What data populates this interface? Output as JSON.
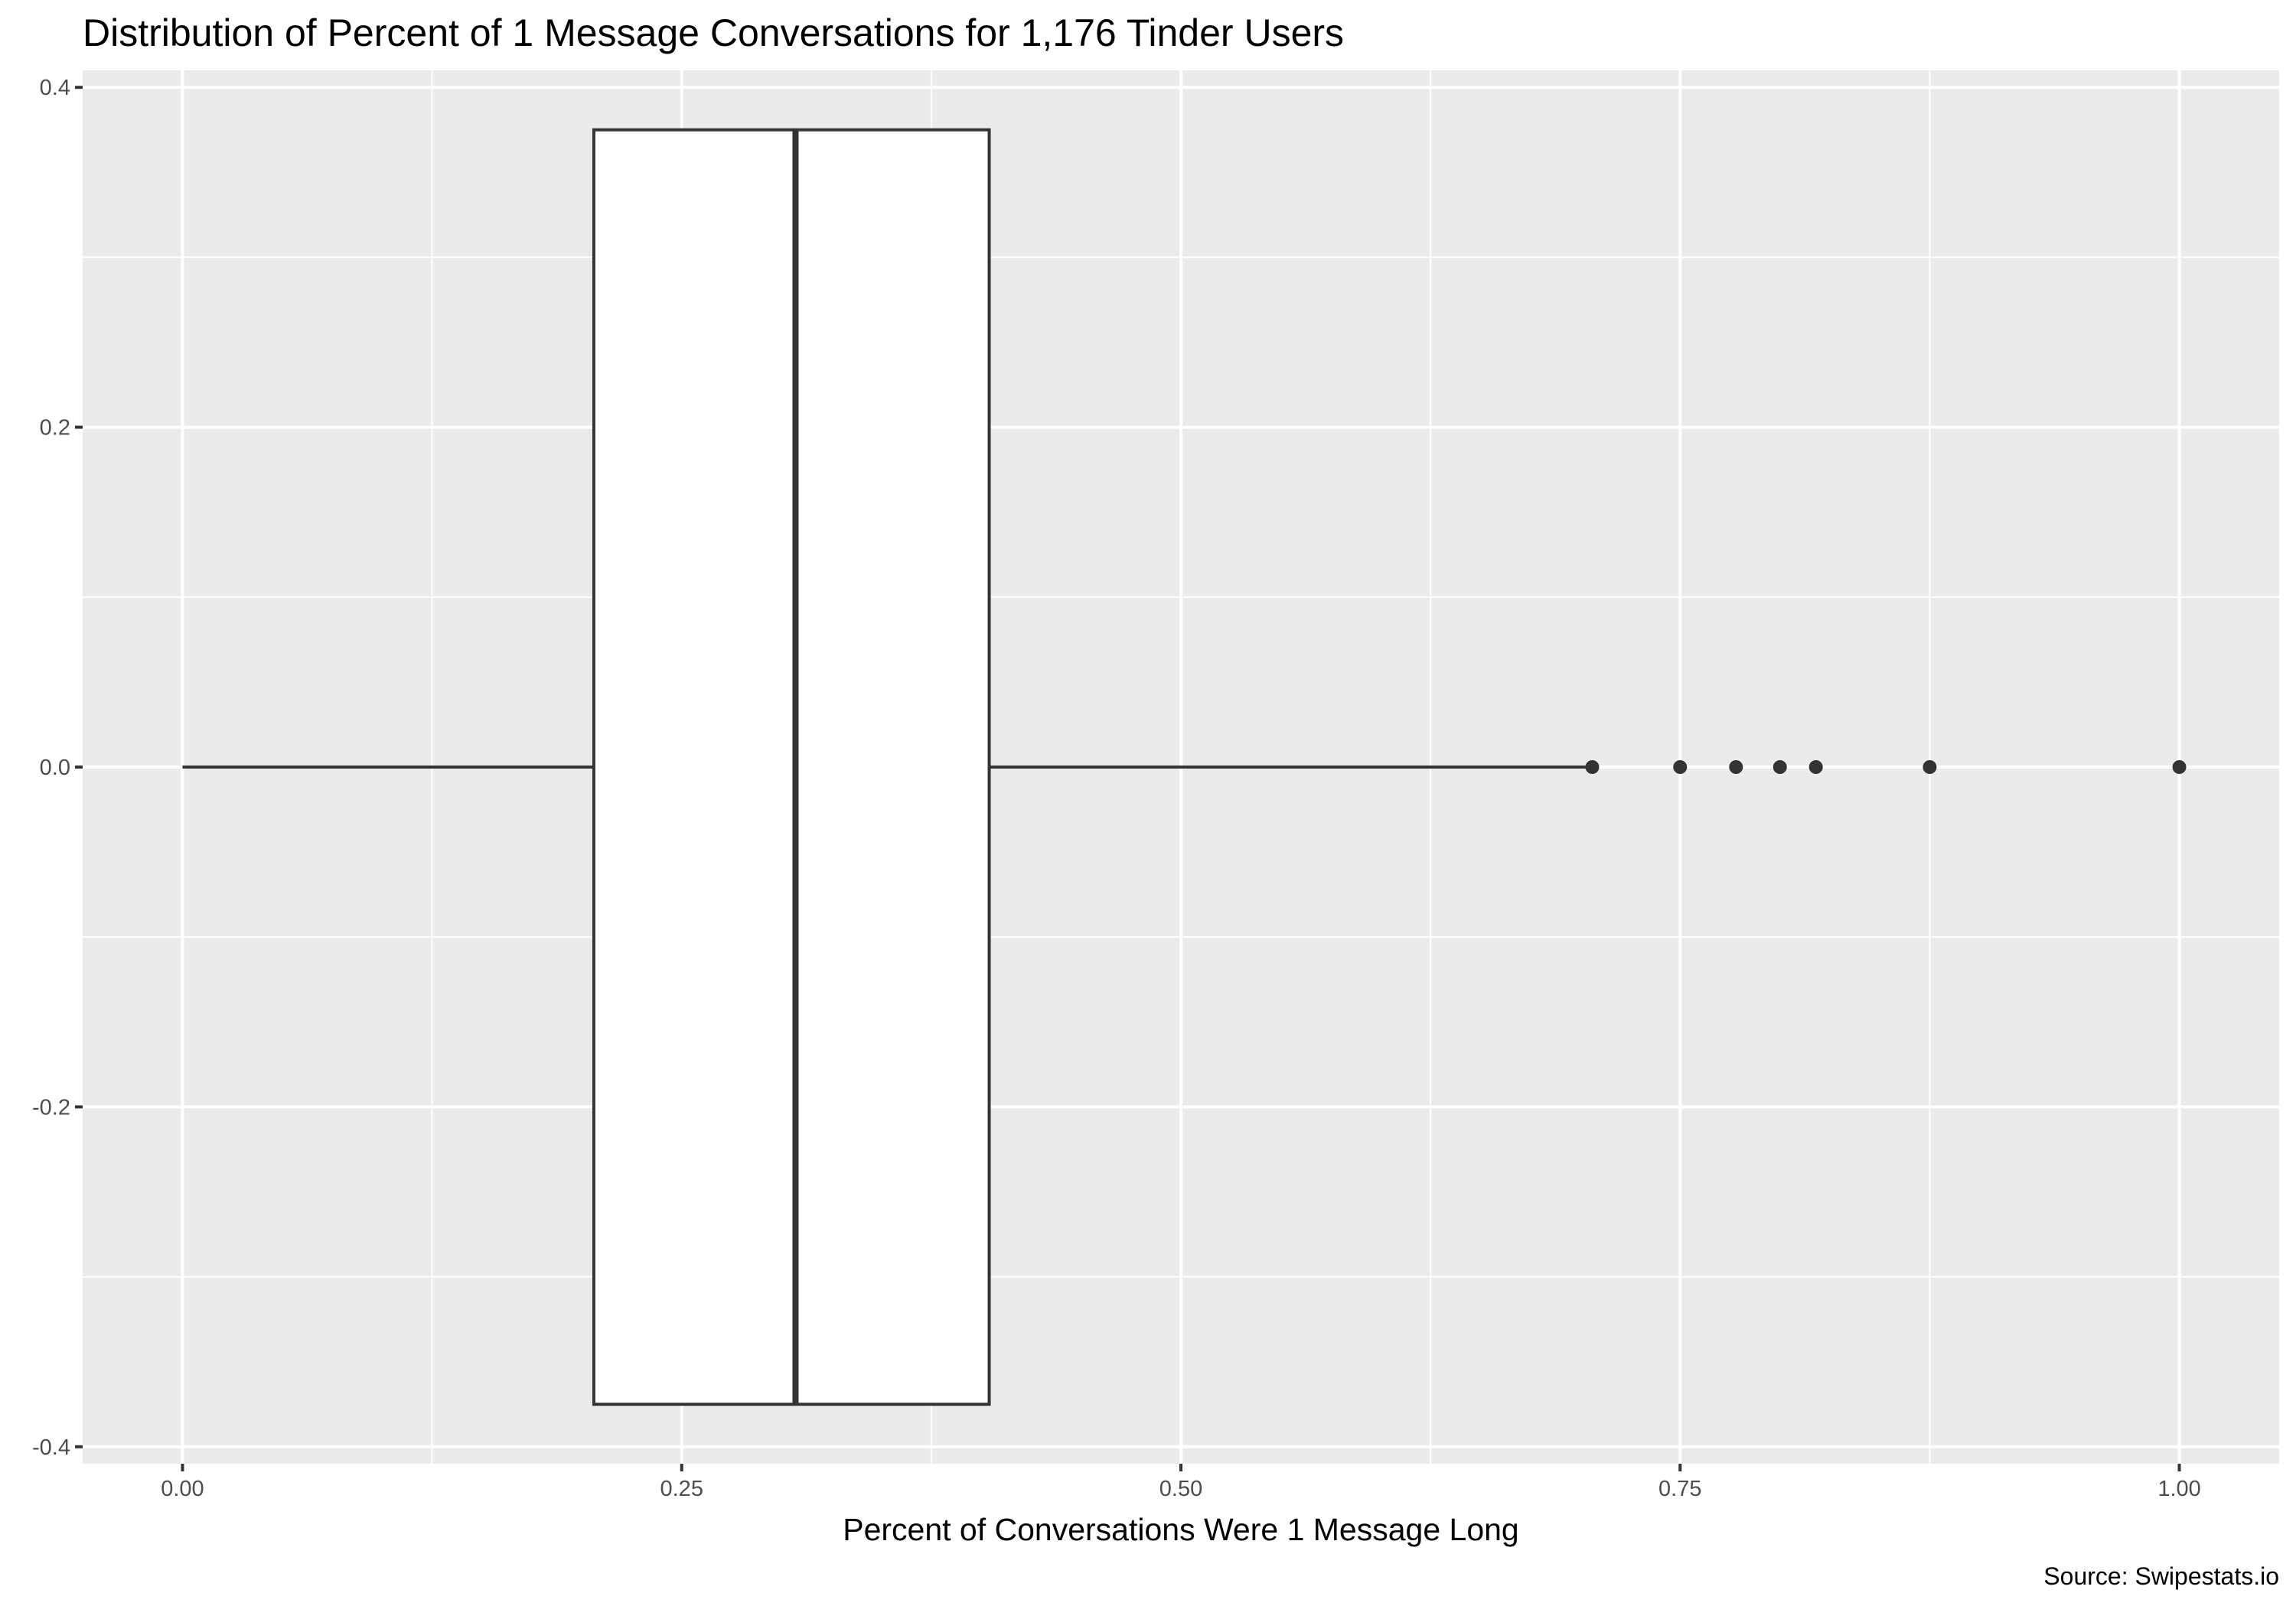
{
  "chart_data": {
    "type": "boxplot",
    "title": "Distribution of Percent of 1 Message Conversations for 1,176 Tinder Users",
    "xlabel": "Percent of Conversations Were 1 Message Long",
    "ylabel": "",
    "caption": "Source: Swipestats.io",
    "xlim": [
      -0.05,
      1.05
    ],
    "ylim": [
      -0.41,
      0.41
    ],
    "x_ticks": [
      {
        "value": 0.0,
        "label": "0.00"
      },
      {
        "value": 0.25,
        "label": "0.25"
      },
      {
        "value": 0.5,
        "label": "0.50"
      },
      {
        "value": 0.75,
        "label": "0.75"
      },
      {
        "value": 1.0,
        "label": "1.00"
      }
    ],
    "x_minor_ticks": [
      0.125,
      0.375,
      0.625,
      0.875
    ],
    "y_ticks": [
      {
        "value": 0.4,
        "label": "0.4"
      },
      {
        "value": 0.2,
        "label": "0.2"
      },
      {
        "value": 0.0,
        "label": "0.0"
      },
      {
        "value": -0.2,
        "label": "-0.2"
      },
      {
        "value": -0.4,
        "label": "-0.4"
      }
    ],
    "y_minor_ticks": [
      0.3,
      0.1,
      -0.1,
      -0.3
    ],
    "box": {
      "min": 0.0,
      "q1": 0.206,
      "median": 0.307,
      "q3": 0.404,
      "max": 0.703,
      "y_center": 0.0,
      "half_height": 0.375
    },
    "outliers": [
      0.706,
      0.75,
      0.778,
      0.8,
      0.818,
      0.875,
      1.0
    ],
    "grid": true,
    "legend": "none",
    "colors": {
      "panel_background": "#ebebeb",
      "grid_line": "#ffffff",
      "box_fill": "#ffffff",
      "box_stroke": "#333333",
      "point": "#333333",
      "tick_label": "#4d4d4d",
      "tick_mark": "#333333"
    }
  }
}
